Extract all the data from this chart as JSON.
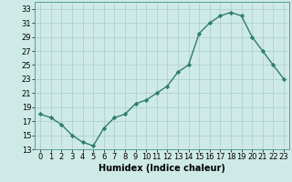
{
  "x": [
    0,
    1,
    2,
    3,
    4,
    5,
    6,
    7,
    8,
    9,
    10,
    11,
    12,
    13,
    14,
    15,
    16,
    17,
    18,
    19,
    20,
    21,
    22,
    23
  ],
  "y": [
    18,
    17.5,
    16.5,
    15,
    14,
    13.5,
    16,
    17.5,
    18,
    19.5,
    20,
    21,
    22,
    24,
    25,
    29.5,
    31,
    32,
    32.5,
    32,
    29,
    27,
    25,
    23
  ],
  "line_color": "#2e7d6e",
  "marker": "D",
  "marker_size": 2.2,
  "bg_color": "#ceeae6",
  "grid_color": "#aaccc8",
  "xlabel": "Humidex (Indice chaleur)",
  "xlim": [
    -0.5,
    23.5
  ],
  "ylim": [
    13,
    34
  ],
  "yticks": [
    13,
    15,
    17,
    19,
    21,
    23,
    25,
    27,
    29,
    31,
    33
  ],
  "xticks": [
    0,
    1,
    2,
    3,
    4,
    5,
    6,
    7,
    8,
    9,
    10,
    11,
    12,
    13,
    14,
    15,
    16,
    17,
    18,
    19,
    20,
    21,
    22,
    23
  ],
  "xlabel_fontsize": 7,
  "tick_fontsize": 6,
  "line_width": 1.0
}
